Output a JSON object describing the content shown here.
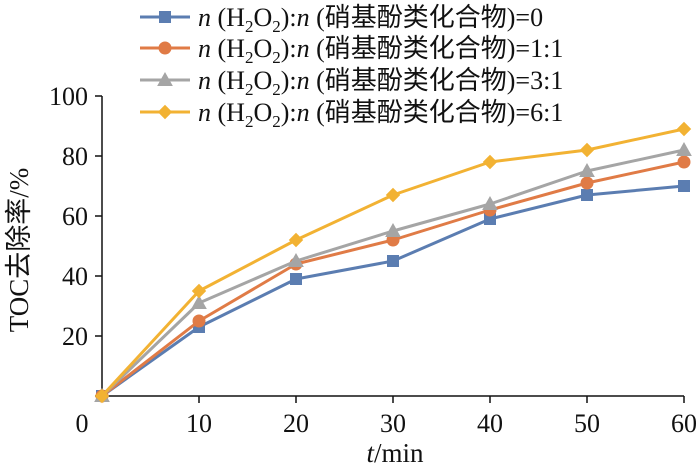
{
  "chart_data": {
    "type": "line",
    "x": [
      0,
      10,
      20,
      30,
      40,
      50,
      60
    ],
    "xlim": [
      0,
      60
    ],
    "ylim": [
      0,
      100
    ],
    "xticks": [
      "0",
      "10",
      "20",
      "30",
      "40",
      "50",
      "60"
    ],
    "yticks": [
      "20",
      "40",
      "60",
      "80",
      "100"
    ],
    "xlabel_italic": "t",
    "xlabel_rest": "/min",
    "ylabel": "TOC去除率/%",
    "grid": false,
    "legend_position": "top",
    "series": [
      {
        "name_italic": "n",
        "name_mid": " (H",
        "name_sub1": "2",
        "name_o": "O",
        "name_sub2": "2",
        "name_colon": "):",
        "name_italic2": "n",
        "name_rest": " (硝基酚类化合物)=0",
        "color": "#5B7DB1",
        "marker": "square",
        "values": [
          0,
          23,
          39,
          45,
          59,
          67,
          70
        ]
      },
      {
        "name_italic": "n",
        "name_mid": " (H",
        "name_sub1": "2",
        "name_o": "O",
        "name_sub2": "2",
        "name_colon": "):",
        "name_italic2": "n",
        "name_rest": " (硝基酚类化合物)=1:1",
        "color": "#E07B46",
        "marker": "circle",
        "values": [
          0,
          25,
          44,
          52,
          62,
          71,
          78
        ]
      },
      {
        "name_italic": "n",
        "name_mid": " (H",
        "name_sub1": "2",
        "name_o": "O",
        "name_sub2": "2",
        "name_colon": "):",
        "name_italic2": "n",
        "name_rest": " (硝基酚类化合物)=3:1",
        "color": "#A5A5A5",
        "marker": "triangle",
        "values": [
          0,
          31,
          45,
          55,
          64,
          75,
          82
        ]
      },
      {
        "name_italic": "n",
        "name_mid": " (H",
        "name_sub1": "2",
        "name_o": "O",
        "name_sub2": "2",
        "name_colon": "):",
        "name_italic2": "n",
        "name_rest": " (硝基酚类化合物)=6:1",
        "color": "#F2B233",
        "marker": "diamond",
        "values": [
          0,
          35,
          52,
          67,
          78,
          82,
          89
        ]
      }
    ]
  }
}
